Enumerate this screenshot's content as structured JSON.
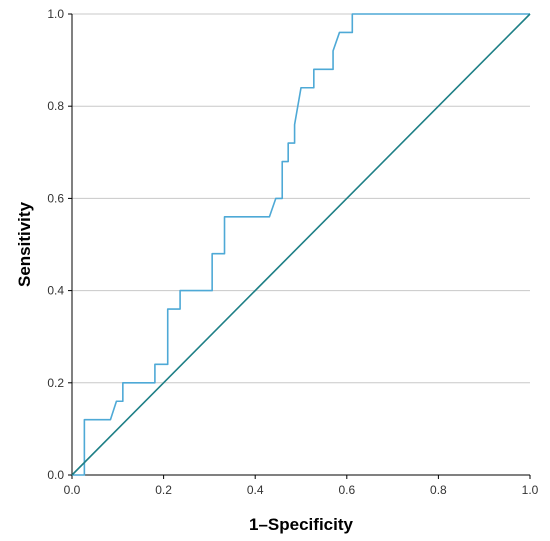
{
  "chart_data": {
    "type": "line",
    "title": "",
    "xlabel": "1–Specificity",
    "ylabel": "Sensitivity",
    "xlim": [
      0,
      1
    ],
    "ylim": [
      0,
      1
    ],
    "x_ticks": [
      "0.0",
      "0.2",
      "0.4",
      "0.6",
      "0.8",
      "1.0"
    ],
    "y_ticks": [
      "0.0",
      "0.2",
      "0.4",
      "0.6",
      "0.8",
      "1.0"
    ],
    "grid": "horizontal",
    "colors": {
      "roc": "#4ea9d6",
      "reference": "#1e7f86",
      "grid": "#c8c8c8"
    },
    "series": [
      {
        "points": [
          [
            0.0,
            0.0
          ],
          [
            0.027,
            0.0
          ],
          [
            0.027,
            0.12
          ],
          [
            0.084,
            0.12
          ],
          [
            0.097,
            0.16
          ],
          [
            0.111,
            0.16
          ],
          [
            0.111,
            0.2
          ],
          [
            0.181,
            0.2
          ],
          [
            0.181,
            0.24
          ],
          [
            0.209,
            0.24
          ],
          [
            0.209,
            0.36
          ],
          [
            0.236,
            0.36
          ],
          [
            0.236,
            0.4
          ],
          [
            0.306,
            0.4
          ],
          [
            0.306,
            0.48
          ],
          [
            0.333,
            0.48
          ],
          [
            0.333,
            0.56
          ],
          [
            0.431,
            0.56
          ],
          [
            0.445,
            0.6
          ],
          [
            0.459,
            0.6
          ],
          [
            0.459,
            0.68
          ],
          [
            0.472,
            0.68
          ],
          [
            0.472,
            0.72
          ],
          [
            0.486,
            0.72
          ],
          [
            0.486,
            0.76
          ],
          [
            0.5,
            0.84
          ],
          [
            0.528,
            0.84
          ],
          [
            0.528,
            0.88
          ],
          [
            0.57,
            0.88
          ],
          [
            0.57,
            0.92
          ],
          [
            0.584,
            0.96
          ],
          [
            0.612,
            0.96
          ],
          [
            0.612,
            1.0
          ],
          [
            1.0,
            1.0
          ]
        ]
      },
      {
        "points": [
          [
            0,
            0
          ],
          [
            1,
            1
          ]
        ]
      }
    ]
  }
}
